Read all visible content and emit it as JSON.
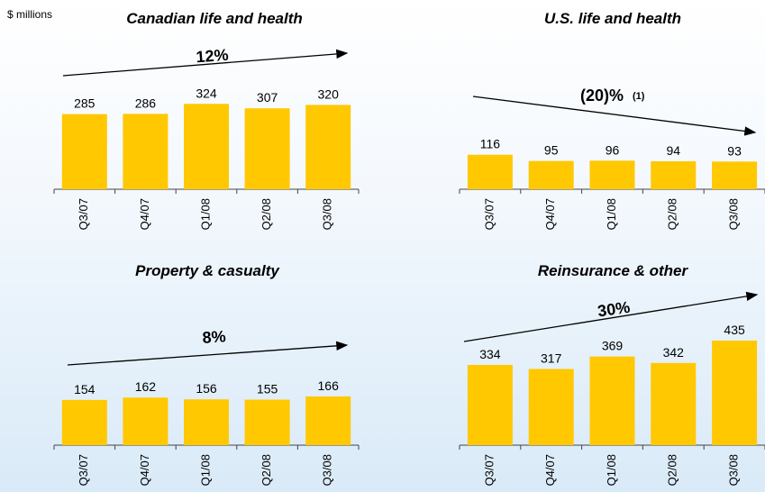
{
  "units": "$ millions",
  "chart_data": [
    {
      "type": "bar",
      "title": "Canadian life and health",
      "growth": "12%",
      "color": "#ffc800",
      "categories": [
        "Q3/07",
        "Q4/07",
        "Q1/08",
        "Q2/08",
        "Q3/08"
      ],
      "values": [
        285,
        286,
        324,
        307,
        320
      ]
    },
    {
      "type": "bar",
      "title": "U.S. life and health",
      "growth": "(20)%",
      "footnote_marker": "(1)",
      "color": "#ffc800",
      "categories": [
        "Q3/07",
        "Q4/07",
        "Q1/08",
        "Q2/08",
        "Q3/08"
      ],
      "values": [
        116,
        95,
        96,
        94,
        93
      ]
    },
    {
      "type": "bar",
      "title": "Property & casualty",
      "growth": "8%",
      "color": "#ffc800",
      "categories": [
        "Q3/07",
        "Q4/07",
        "Q1/08",
        "Q2/08",
        "Q3/08"
      ],
      "values": [
        154,
        162,
        156,
        155,
        166
      ]
    },
    {
      "type": "bar",
      "title": "Reinsurance & other",
      "growth": "30%",
      "color": "#ffc800",
      "categories": [
        "Q3/07",
        "Q4/07",
        "Q1/08",
        "Q2/08",
        "Q3/08"
      ],
      "values": [
        334,
        317,
        369,
        342,
        435
      ]
    }
  ]
}
